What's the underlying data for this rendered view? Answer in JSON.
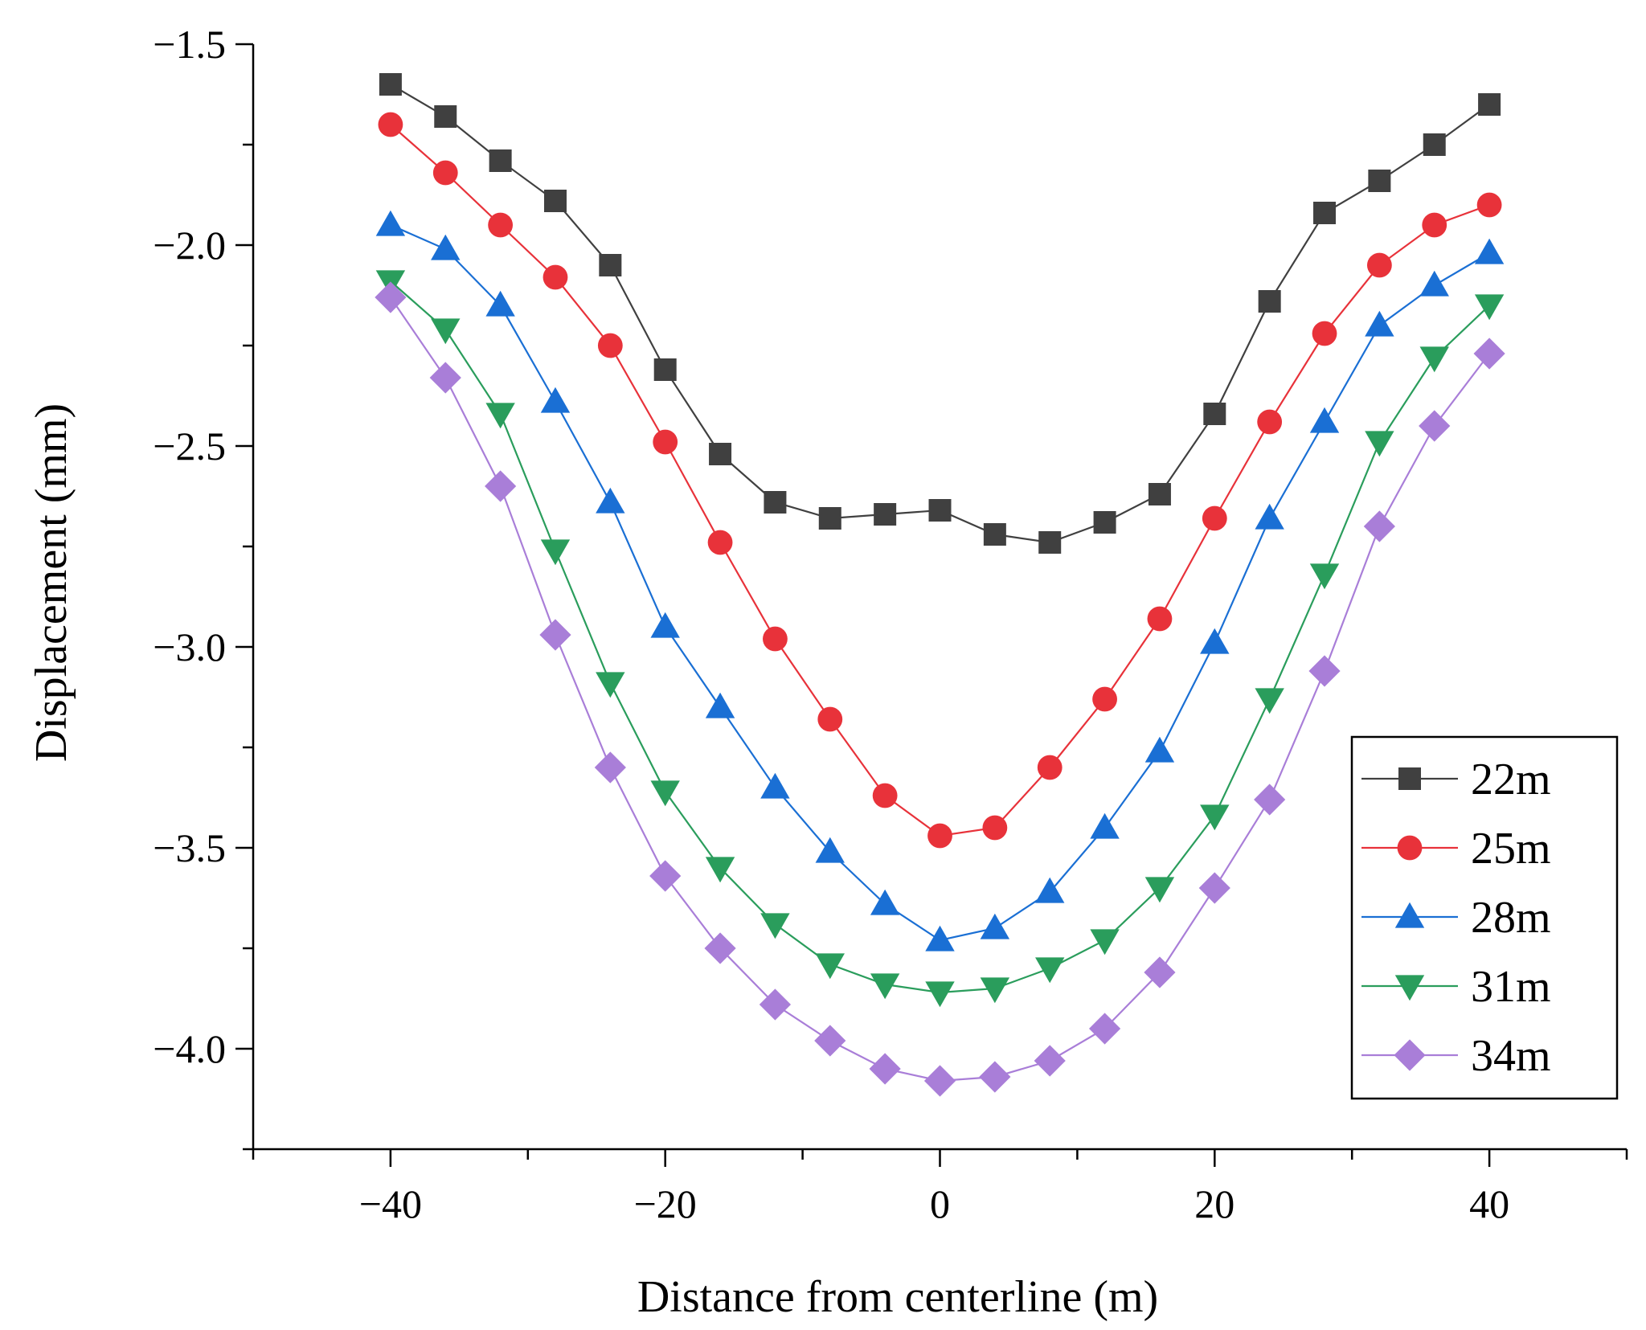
{
  "chart_data": {
    "type": "line",
    "title": "",
    "xlabel": "Distance from centerline (m)",
    "ylabel": "Displacement (mm)",
    "xlim": [
      -50,
      50
    ],
    "ylim": [
      -4.25,
      -1.5
    ],
    "xticks": [
      -40,
      -20,
      0,
      20,
      40
    ],
    "xtick_labels": [
      "−40",
      "−20",
      "0",
      "20",
      "40"
    ],
    "yticks": [
      -1.5,
      -2.0,
      -2.5,
      -3.0,
      -3.5,
      -4.0
    ],
    "ytick_labels": [
      "−1.5",
      "−2.0",
      "−2.5",
      "−3.0",
      "−3.5",
      "−4.0"
    ],
    "grid": false,
    "legend_position": "bottom-right",
    "x": [
      -40,
      -36,
      -32,
      -28,
      -24,
      -20,
      -16,
      -12,
      -8,
      -4,
      0,
      4,
      8,
      12,
      16,
      20,
      24,
      28,
      32,
      36,
      40
    ],
    "series": [
      {
        "name": "22m",
        "color": "#404040",
        "marker": "square",
        "values": [
          -1.6,
          -1.68,
          -1.79,
          -1.89,
          -2.05,
          -2.31,
          -2.52,
          -2.64,
          -2.68,
          -2.67,
          -2.66,
          -2.72,
          -2.74,
          -2.69,
          -2.62,
          -2.42,
          -2.14,
          -1.92,
          -1.84,
          -1.75,
          -1.65
        ]
      },
      {
        "name": "25m",
        "color": "#e8323a",
        "marker": "circle",
        "values": [
          -1.7,
          -1.82,
          -1.95,
          -2.08,
          -2.25,
          -2.49,
          -2.74,
          -2.98,
          -3.18,
          -3.37,
          -3.47,
          -3.45,
          -3.3,
          -3.13,
          -2.93,
          -2.68,
          -2.44,
          -2.22,
          -2.05,
          -1.95,
          -1.9
        ]
      },
      {
        "name": "28m",
        "color": "#1a6fd4",
        "marker": "triangle-up",
        "values": [
          -1.95,
          -2.01,
          -2.15,
          -2.39,
          -2.64,
          -2.95,
          -3.15,
          -3.35,
          -3.51,
          -3.64,
          -3.73,
          -3.7,
          -3.61,
          -3.45,
          -3.26,
          -2.99,
          -2.68,
          -2.44,
          -2.2,
          -2.1,
          -2.02
        ]
      },
      {
        "name": "31m",
        "color": "#2a9d5c",
        "marker": "triangle-down",
        "values": [
          -2.09,
          -2.21,
          -2.42,
          -2.76,
          -3.09,
          -3.36,
          -3.55,
          -3.69,
          -3.79,
          -3.84,
          -3.86,
          -3.85,
          -3.8,
          -3.73,
          -3.6,
          -3.42,
          -3.13,
          -2.82,
          -2.49,
          -2.28,
          -2.15
        ]
      },
      {
        "name": "34m",
        "color": "#a97ed8",
        "marker": "diamond",
        "values": [
          -2.13,
          -2.33,
          -2.6,
          -2.97,
          -3.3,
          -3.57,
          -3.75,
          -3.89,
          -3.98,
          -4.05,
          -4.08,
          -4.07,
          -4.03,
          -3.95,
          -3.81,
          -3.6,
          -3.38,
          -3.06,
          -2.7,
          -2.45,
          -2.27
        ]
      }
    ]
  }
}
